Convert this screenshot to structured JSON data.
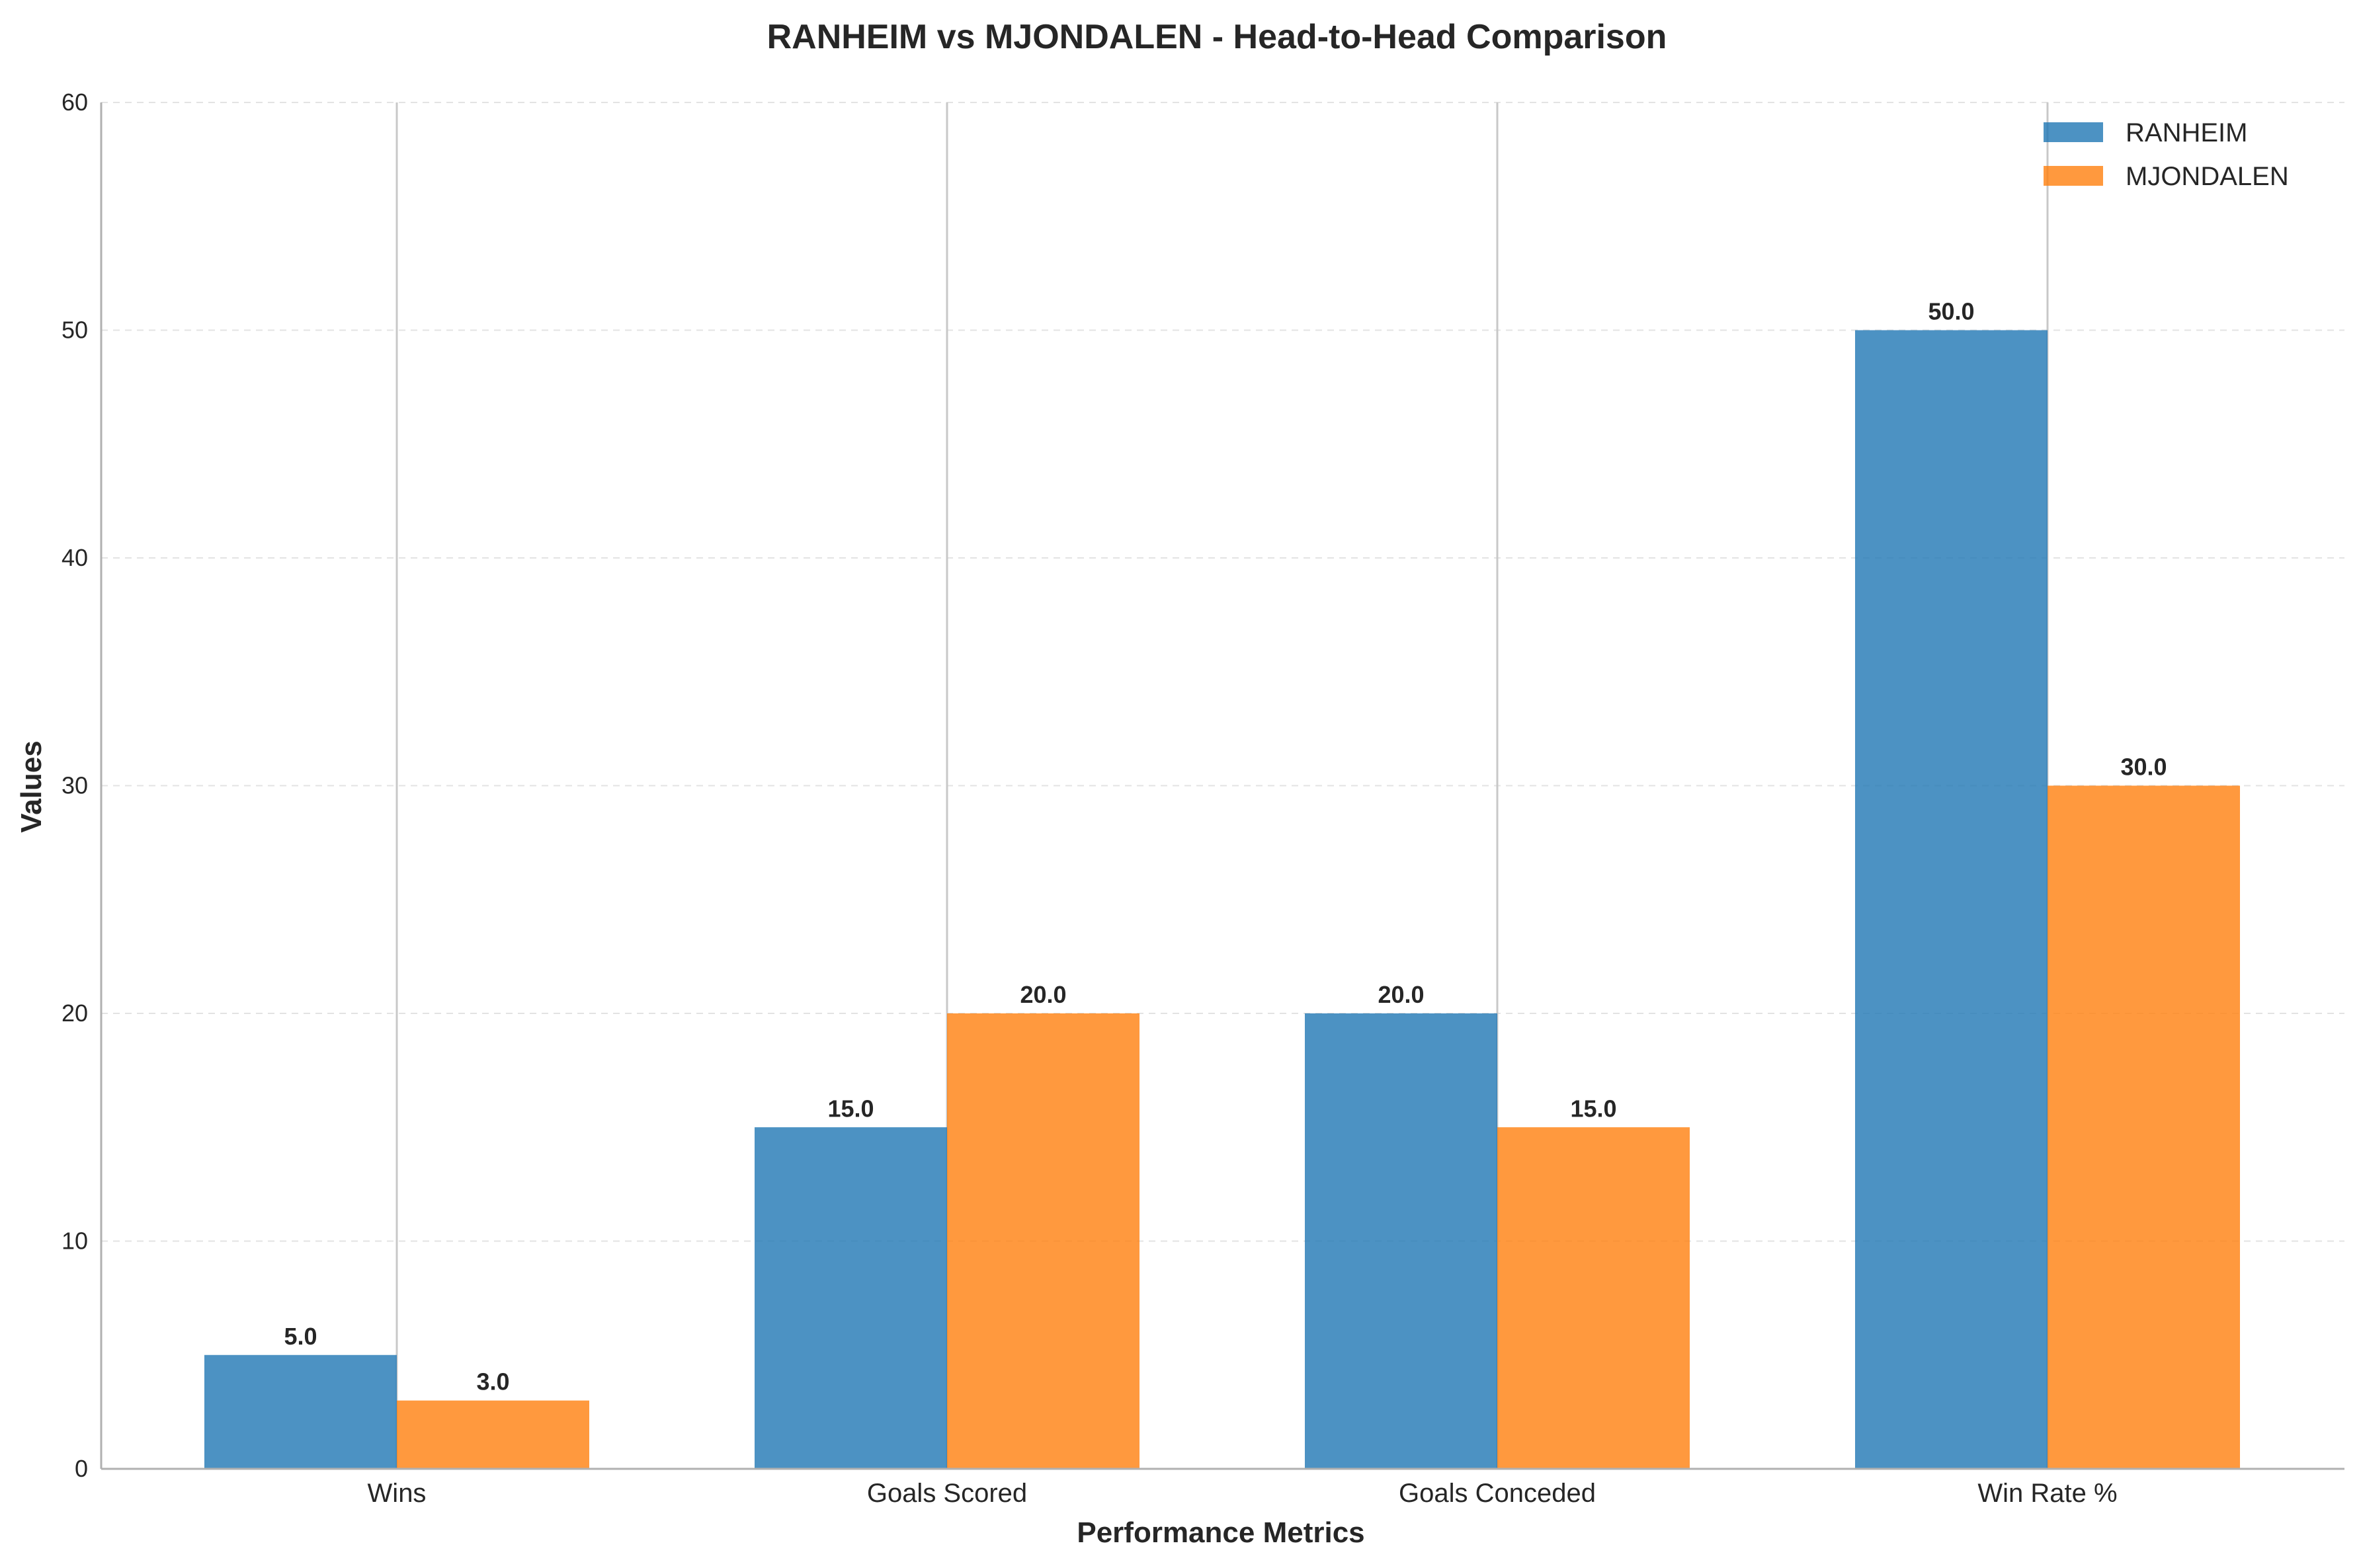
{
  "chart_data": {
    "type": "bar",
    "title": "RANHEIM vs MJONDALEN - Head-to-Head Comparison",
    "xlabel": "Performance Metrics",
    "ylabel": "Values",
    "categories": [
      "Wins",
      "Goals Scored",
      "Goals Conceded",
      "Win Rate %"
    ],
    "series": [
      {
        "name": "RANHEIM",
        "values": [
          5.0,
          15.0,
          20.0,
          50.0
        ],
        "color": "#1f77b4"
      },
      {
        "name": "MJONDALEN",
        "values": [
          3.0,
          20.0,
          15.0,
          30.0
        ],
        "color": "#ff7f0e"
      }
    ],
    "ylim": [
      0,
      60
    ],
    "yticks": [
      0,
      10,
      20,
      30,
      40,
      50,
      60
    ],
    "grid": "y-dashed",
    "legend_position": "top-right",
    "data_label_format": "one-decimal"
  }
}
